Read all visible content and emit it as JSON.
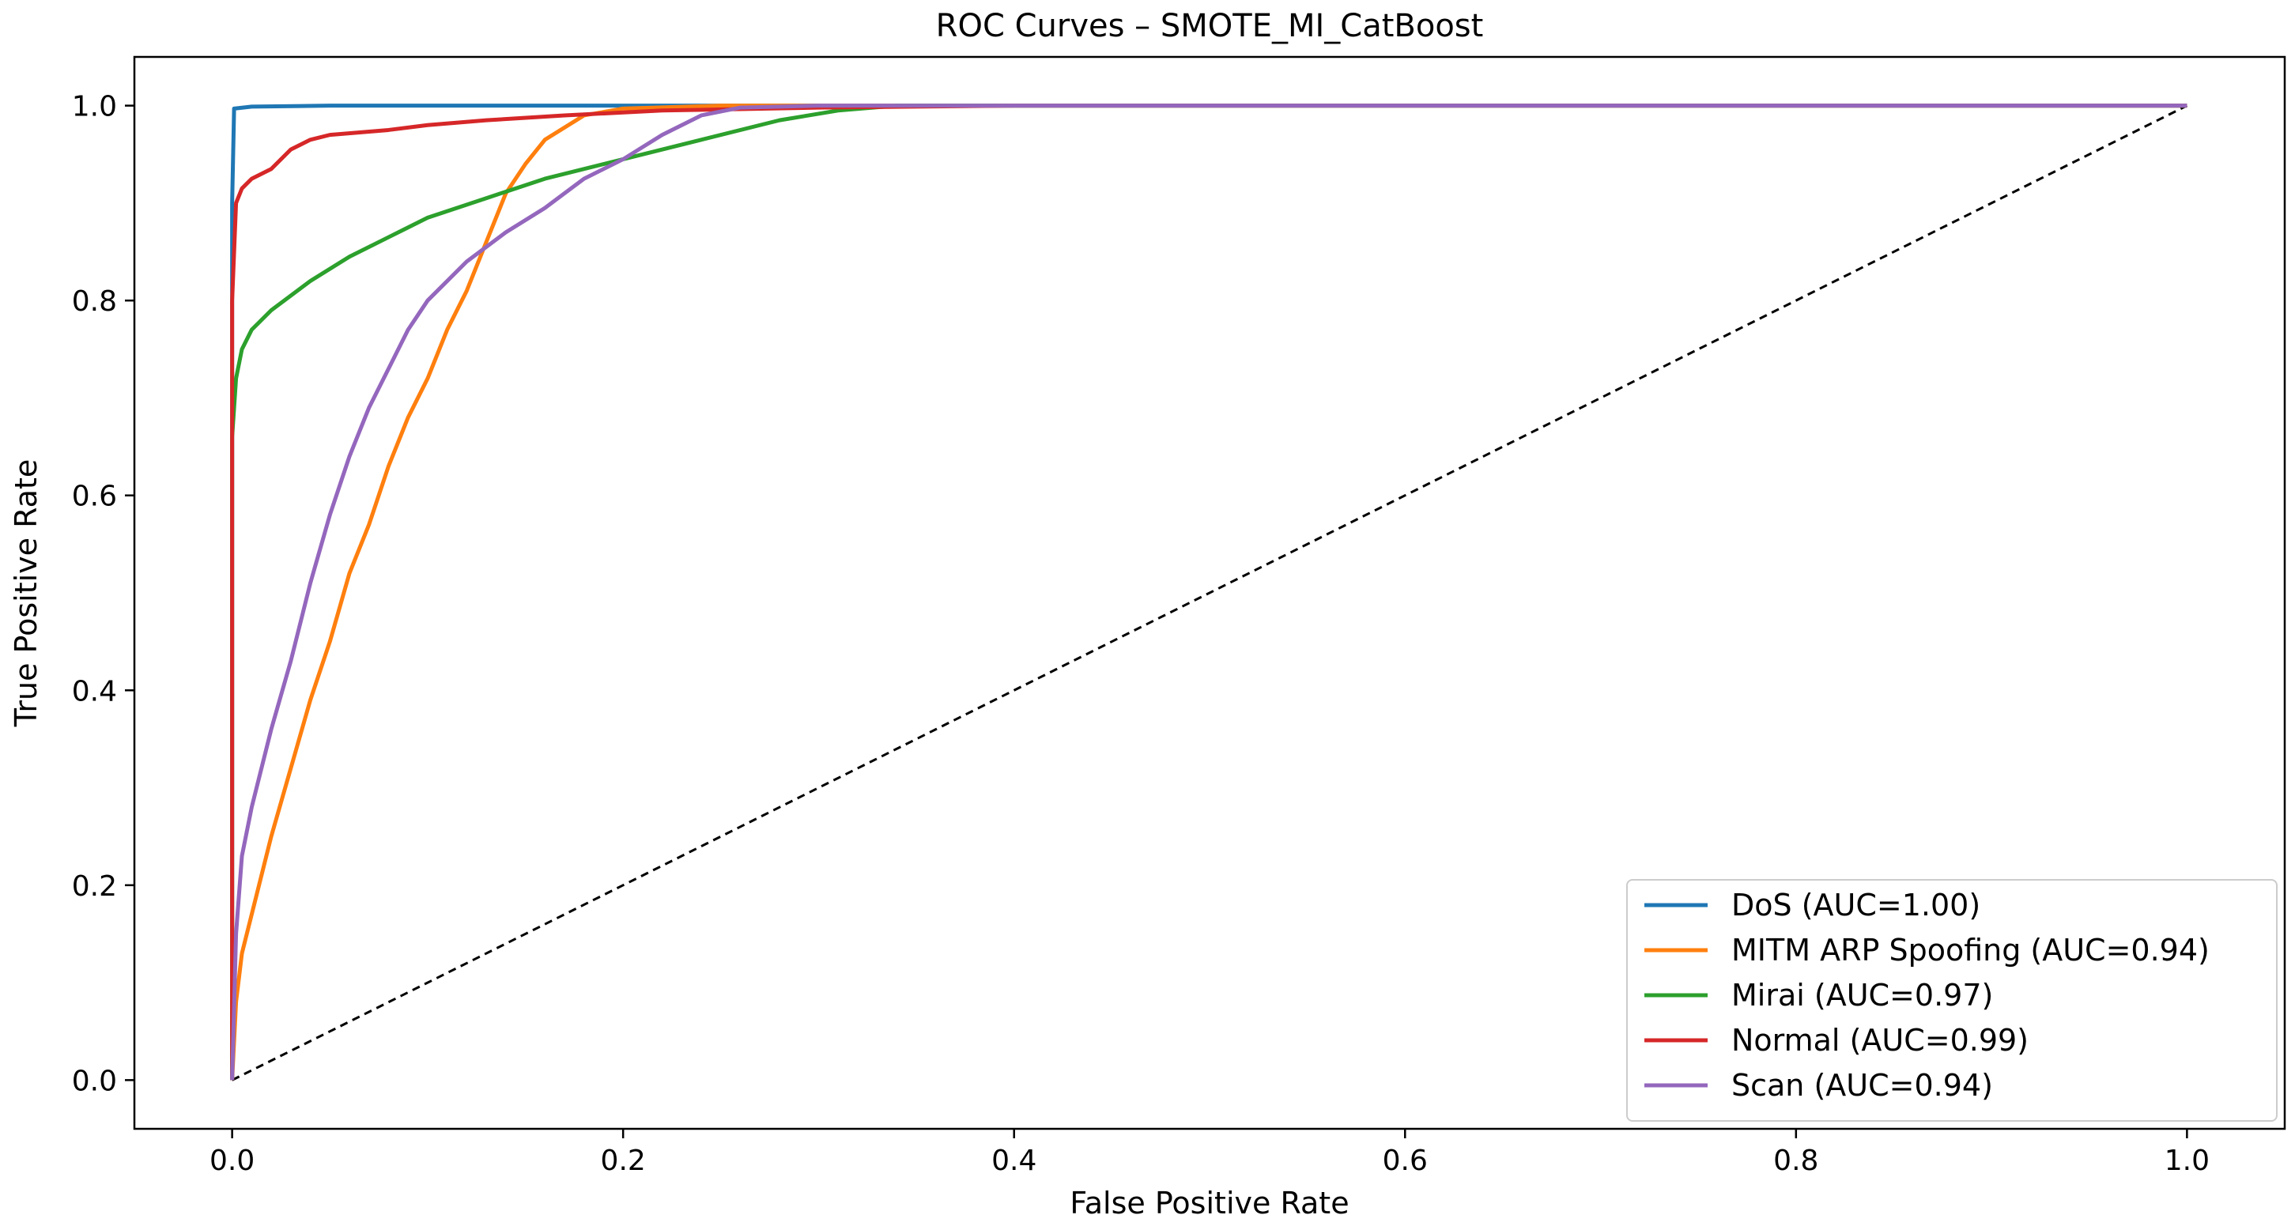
{
  "chart_data": {
    "type": "line",
    "title": "ROC Curves – SMOTE_MI_CatBoost",
    "xlabel": "False Positive Rate",
    "ylabel": "True Positive Rate",
    "xlim": [
      -0.05,
      1.05
    ],
    "ylim": [
      -0.05,
      1.05
    ],
    "xticks": [
      "0.0",
      "0.2",
      "0.4",
      "0.6",
      "0.8",
      "1.0"
    ],
    "yticks": [
      "0.0",
      "0.2",
      "0.4",
      "0.6",
      "0.8",
      "1.0"
    ],
    "grid": false,
    "legend_position": "lower-right",
    "series": [
      {
        "name": "DoS (AUC=1.00)",
        "color": "#1f77b4",
        "points": [
          [
            0,
            0
          ],
          [
            0,
            0.9
          ],
          [
            0.001,
            0.997
          ],
          [
            0.01,
            0.999
          ],
          [
            0.05,
            1.0
          ],
          [
            1.0,
            1.0
          ]
        ]
      },
      {
        "name": "MITM ARP Spoofing (AUC=0.94)",
        "color": "#ff7f0e",
        "points": [
          [
            0,
            0
          ],
          [
            0.002,
            0.08
          ],
          [
            0.005,
            0.13
          ],
          [
            0.01,
            0.17
          ],
          [
            0.02,
            0.25
          ],
          [
            0.03,
            0.32
          ],
          [
            0.04,
            0.39
          ],
          [
            0.05,
            0.45
          ],
          [
            0.06,
            0.52
          ],
          [
            0.07,
            0.57
          ],
          [
            0.08,
            0.63
          ],
          [
            0.09,
            0.68
          ],
          [
            0.1,
            0.72
          ],
          [
            0.11,
            0.77
          ],
          [
            0.12,
            0.81
          ],
          [
            0.13,
            0.86
          ],
          [
            0.14,
            0.91
          ],
          [
            0.15,
            0.94
          ],
          [
            0.16,
            0.965
          ],
          [
            0.18,
            0.99
          ],
          [
            0.2,
            0.997
          ],
          [
            0.25,
            1.0
          ],
          [
            1.0,
            1.0
          ]
        ]
      },
      {
        "name": "Mirai (AUC=0.97)",
        "color": "#2ca02c",
        "points": [
          [
            0,
            0
          ],
          [
            0,
            0.66
          ],
          [
            0.002,
            0.72
          ],
          [
            0.005,
            0.75
          ],
          [
            0.01,
            0.77
          ],
          [
            0.02,
            0.79
          ],
          [
            0.04,
            0.82
          ],
          [
            0.06,
            0.845
          ],
          [
            0.08,
            0.865
          ],
          [
            0.1,
            0.885
          ],
          [
            0.13,
            0.905
          ],
          [
            0.16,
            0.925
          ],
          [
            0.2,
            0.945
          ],
          [
            0.24,
            0.965
          ],
          [
            0.28,
            0.985
          ],
          [
            0.31,
            0.995
          ],
          [
            0.34,
            1.0
          ],
          [
            1.0,
            1.0
          ]
        ]
      },
      {
        "name": "Normal (AUC=0.99)",
        "color": "#d62728",
        "points": [
          [
            0,
            0
          ],
          [
            0,
            0.8
          ],
          [
            0.002,
            0.9
          ],
          [
            0.005,
            0.915
          ],
          [
            0.01,
            0.925
          ],
          [
            0.02,
            0.935
          ],
          [
            0.03,
            0.955
          ],
          [
            0.04,
            0.965
          ],
          [
            0.05,
            0.97
          ],
          [
            0.08,
            0.975
          ],
          [
            0.1,
            0.98
          ],
          [
            0.13,
            0.985
          ],
          [
            0.17,
            0.99
          ],
          [
            0.22,
            0.995
          ],
          [
            0.3,
            0.998
          ],
          [
            0.4,
            1.0
          ],
          [
            1.0,
            1.0
          ]
        ]
      },
      {
        "name": "Scan (AUC=0.94)",
        "color": "#9467bd",
        "points": [
          [
            0,
            0
          ],
          [
            0.002,
            0.15
          ],
          [
            0.005,
            0.23
          ],
          [
            0.01,
            0.28
          ],
          [
            0.02,
            0.36
          ],
          [
            0.03,
            0.43
          ],
          [
            0.04,
            0.51
          ],
          [
            0.05,
            0.58
          ],
          [
            0.06,
            0.64
          ],
          [
            0.07,
            0.69
          ],
          [
            0.08,
            0.73
          ],
          [
            0.09,
            0.77
          ],
          [
            0.1,
            0.8
          ],
          [
            0.12,
            0.84
          ],
          [
            0.14,
            0.87
          ],
          [
            0.16,
            0.895
          ],
          [
            0.18,
            0.925
          ],
          [
            0.2,
            0.945
          ],
          [
            0.22,
            0.97
          ],
          [
            0.24,
            0.99
          ],
          [
            0.26,
            0.998
          ],
          [
            0.3,
            1.0
          ],
          [
            1.0,
            1.0
          ]
        ]
      }
    ],
    "reference_line": {
      "style": "dashed",
      "color": "#000000",
      "points": [
        [
          0,
          0
        ],
        [
          1,
          1
        ]
      ]
    }
  }
}
